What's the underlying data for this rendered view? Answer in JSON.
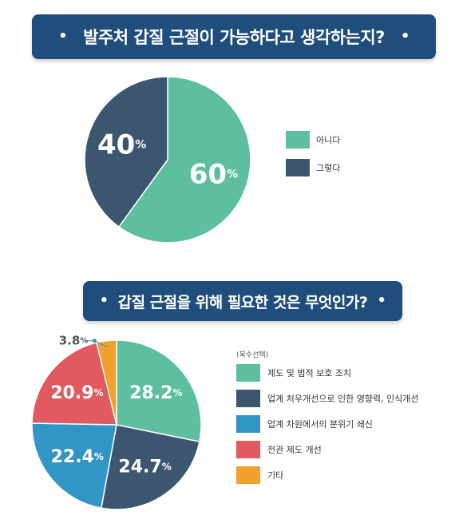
{
  "colors": {
    "banner_bg": "#1f4e7c",
    "green": "#5dbf9f",
    "navy": "#3b566e",
    "blue": "#3196c5",
    "red": "#e05a5f",
    "orange": "#f0a02b"
  },
  "banner1": {
    "dot": "•",
    "title": "발주처 갑질 근절이 가능하다고 생각하는지?"
  },
  "banner2": {
    "dot": "•",
    "title": "갑질 근절을 위해 필요한 것은 무엇인가?"
  },
  "chart_data": [
    {
      "type": "pie",
      "title": "발주처 갑질 근절이 가능하다고 생각하는지?",
      "unit": "%",
      "slices": [
        {
          "label": "아니다",
          "value": 60,
          "value_text": "60",
          "color": "#5dbf9f"
        },
        {
          "label": "그렇다",
          "value": 40,
          "value_text": "40",
          "color": "#3b566e"
        }
      ],
      "legend_position": "right"
    },
    {
      "type": "pie",
      "title": "갑질 근절을 위해 필요한 것은 무엇인가?",
      "unit": "%",
      "legend_note": "(복수선택)",
      "slices": [
        {
          "label": "제도 및 법적 보호 조치",
          "value": 28.2,
          "value_text": "28.2",
          "color": "#5dbf9f"
        },
        {
          "label": "업계 처우개선으로 인한 영향력, 인식개선",
          "value": 24.7,
          "value_text": "24.7",
          "color": "#3b566e"
        },
        {
          "label": "업계 차원에서의 분위기 쇄신",
          "value": 22.4,
          "value_text": "22.4",
          "color": "#3196c5"
        },
        {
          "label": "전관 제도 개선",
          "value": 20.9,
          "value_text": "20.9",
          "color": "#e05a5f"
        },
        {
          "label": "기타",
          "value": 3.8,
          "value_text": "3.8",
          "color": "#f0a02b"
        }
      ],
      "legend_position": "right"
    }
  ]
}
